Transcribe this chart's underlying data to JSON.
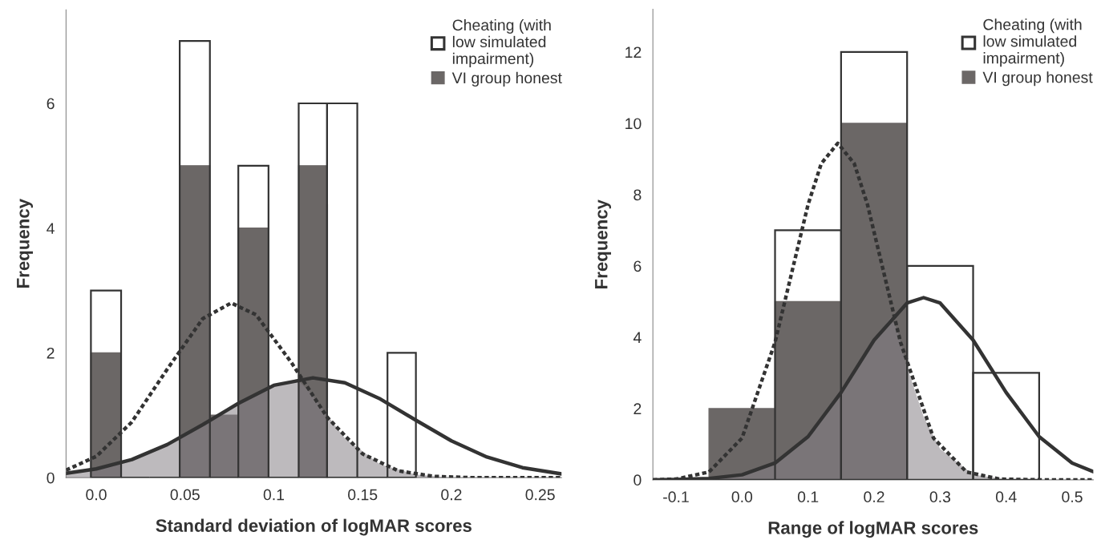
{
  "chart_data": [
    {
      "type": "histogram",
      "xlabel": "Standard deviation of logMAR scores",
      "ylabel": "Frequency",
      "legend": "top right",
      "bins": [
        -0.003,
        0.014,
        0.03,
        0.047,
        0.064,
        0.08,
        0.097,
        0.114,
        0.13,
        0.147,
        0.164,
        0.18
      ],
      "xlim": [
        -0.017,
        0.262
      ],
      "ylim": [
        0,
        7.5
      ],
      "xticks": [
        {
          "value": 0,
          "label": "0.0"
        },
        0.05,
        0.1,
        0.15,
        0.2,
        0.25
      ],
      "yticks": [
        0,
        2,
        4,
        6
      ],
      "series": [
        {
          "name": "Cheating (with\nlow simulated\nimpairment)",
          "color": "#333333",
          "values": [
            3,
            0,
            0,
            7,
            0,
            5,
            0,
            6,
            6,
            0,
            2
          ]
        },
        {
          "name": "VI group honest",
          "color": "#6b6766",
          "values": [
            2,
            0,
            0,
            5,
            1,
            4,
            0,
            5,
            0,
            0,
            0
          ]
        },
        {
          "type": "area",
          "color": "#868286",
          "x": [
            -0.017,
            0.0,
            0.02,
            0.04,
            0.06,
            0.08,
            0.1,
            0.113,
            0.12,
            0.14,
            0.16,
            0.18,
            0.2,
            0.22,
            0.24,
            0.262
          ],
          "values": [
            0.07,
            0.14,
            0.29,
            0.53,
            0.85,
            1.19,
            1.48,
            1.58,
            1.38,
            0.63,
            0.21,
            0.05,
            0.0,
            0.0,
            0.0,
            0.0
          ]
        },
        {
          "type": "line",
          "color": "#333333",
          "line_style": "dotted",
          "x": [
            -0.017,
            0.0,
            0.02,
            0.04,
            0.06,
            0.076,
            0.09,
            0.11,
            0.13,
            0.15,
            0.17,
            0.19,
            0.21,
            0.262
          ],
          "values": [
            0.12,
            0.34,
            0.89,
            1.74,
            2.55,
            2.8,
            2.61,
            1.84,
            0.97,
            0.38,
            0.11,
            0.02,
            0.0,
            0.0
          ]
        },
        {
          "type": "line",
          "color": "#333333",
          "line_style": "solid",
          "x": [
            -0.017,
            0.0,
            0.02,
            0.04,
            0.06,
            0.08,
            0.1,
            0.122,
            0.14,
            0.16,
            0.18,
            0.2,
            0.22,
            0.24,
            0.262
          ],
          "values": [
            0.07,
            0.14,
            0.29,
            0.53,
            0.85,
            1.19,
            1.48,
            1.6,
            1.52,
            1.26,
            0.92,
            0.59,
            0.33,
            0.16,
            0.06
          ]
        }
      ]
    },
    {
      "type": "histogram",
      "xlabel": "Range of logMAR scores",
      "ylabel": "Frequency",
      "legend": "top right",
      "bins": [
        -0.05,
        0.05,
        0.15,
        0.25,
        0.35,
        0.45
      ],
      "xlim": [
        -0.135,
        0.532
      ],
      "ylim": [
        0,
        13.2
      ],
      "xticks": [
        -0.1,
        {
          "value": 0,
          "label": "0.0"
        },
        0.1,
        0.2,
        0.3,
        0.4,
        0.5
      ],
      "yticks": [
        0,
        2,
        4,
        6,
        8,
        10,
        12
      ],
      "series": [
        {
          "name": "Cheating (with\nlow simulated\nimpairment)",
          "color": "#333333",
          "values": [
            0,
            7,
            12,
            6,
            3
          ]
        },
        {
          "name": "VI group honest",
          "color": "#6b6766",
          "values": [
            2,
            5,
            10,
            0,
            0
          ]
        },
        {
          "type": "area",
          "color": "#868286",
          "x": [
            -0.135,
            -0.1,
            -0.05,
            0.0,
            0.05,
            0.1,
            0.15,
            0.2,
            0.225,
            0.235,
            0.25,
            0.275,
            0.3,
            0.35,
            0.4,
            0.45,
            0.5,
            0.532
          ],
          "values": [
            0.0,
            0.01,
            0.04,
            0.14,
            0.47,
            1.21,
            2.45,
            3.92,
            4.54,
            4.23,
            3.16,
            1.77,
            0.87,
            0.15,
            0.01,
            0.0,
            0.0,
            0.0
          ]
        },
        {
          "type": "line",
          "color": "#333333",
          "line_style": "dotted",
          "x": [
            -0.135,
            -0.1,
            -0.05,
            0.0,
            0.05,
            0.1,
            0.12,
            0.145,
            0.17,
            0.19,
            0.24,
            0.29,
            0.34,
            0.39,
            0.45,
            0.532
          ],
          "values": [
            0.0,
            0.02,
            0.22,
            1.17,
            3.86,
            7.72,
            8.87,
            9.44,
            8.87,
            7.72,
            3.86,
            1.17,
            0.22,
            0.02,
            0.0,
            0.0
          ]
        },
        {
          "type": "line",
          "color": "#333333",
          "line_style": "solid",
          "x": [
            -0.135,
            -0.1,
            -0.05,
            0.0,
            0.05,
            0.1,
            0.15,
            0.2,
            0.25,
            0.275,
            0.3,
            0.35,
            0.4,
            0.45,
            0.5,
            0.532
          ],
          "values": [
            0.0,
            0.01,
            0.04,
            0.14,
            0.47,
            1.21,
            2.45,
            3.92,
            4.96,
            5.11,
            4.96,
            3.92,
            2.45,
            1.21,
            0.47,
            0.23
          ]
        }
      ]
    }
  ]
}
